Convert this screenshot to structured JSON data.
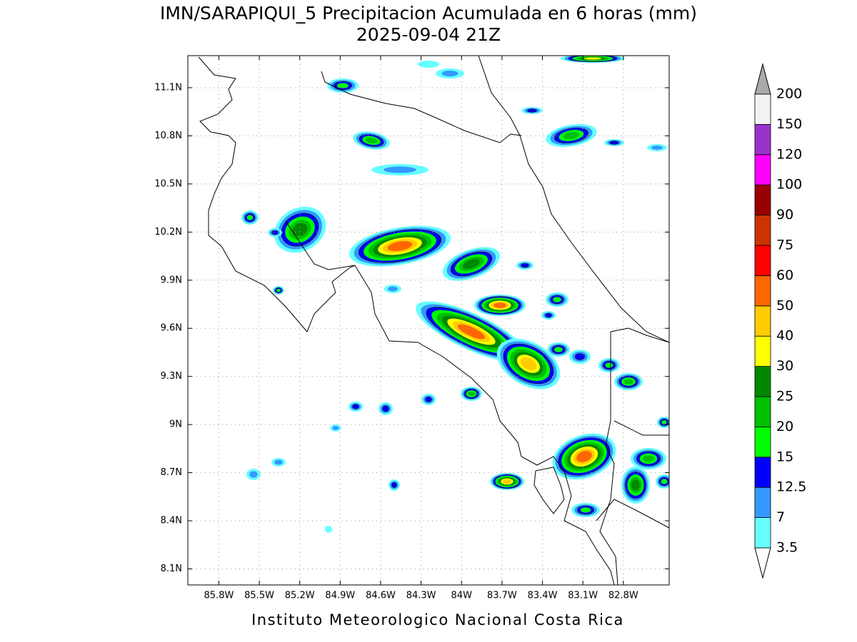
{
  "map": {
    "title": "IMN/SARAPIQUI_5 Precipitacion Acumulada en 6 horas (mm)",
    "subtitle": "2025-09-04 21Z",
    "footer": "Instituto Meteorologico Nacional Costa Rica",
    "xlim": [
      -86.03,
      -82.46
    ],
    "ylim": [
      8.0,
      11.3
    ],
    "xticks": [
      {
        "value": -85.8,
        "label": "85.8W"
      },
      {
        "value": -85.5,
        "label": "85.5W"
      },
      {
        "value": -85.2,
        "label": "85.2W"
      },
      {
        "value": -84.9,
        "label": "84.9W"
      },
      {
        "value": -84.6,
        "label": "84.6W"
      },
      {
        "value": -84.3,
        "label": "84.3W"
      },
      {
        "value": -84.0,
        "label": "84W"
      },
      {
        "value": -83.7,
        "label": "83.7W"
      },
      {
        "value": -83.4,
        "label": "83.4W"
      },
      {
        "value": -83.1,
        "label": "83.1W"
      },
      {
        "value": -82.8,
        "label": "82.8W"
      }
    ],
    "yticks": [
      {
        "value": 11.1,
        "label": "11.1N"
      },
      {
        "value": 10.8,
        "label": "10.8N"
      },
      {
        "value": 10.5,
        "label": "10.5N"
      },
      {
        "value": 10.2,
        "label": "10.2N"
      },
      {
        "value": 9.9,
        "label": "9.9N"
      },
      {
        "value": 9.6,
        "label": "9.6N"
      },
      {
        "value": 9.3,
        "label": "9.3N"
      },
      {
        "value": 9.0,
        "label": "9N"
      },
      {
        "value": 8.7,
        "label": "8.7N"
      },
      {
        "value": 8.4,
        "label": "8.4N"
      },
      {
        "value": 8.1,
        "label": "8.1N"
      }
    ],
    "grid": true,
    "colorbar": {
      "levels": [
        3.5,
        7,
        12.5,
        15,
        20,
        25,
        30,
        40,
        50,
        60,
        75,
        90,
        100,
        120,
        150,
        200
      ],
      "colors": [
        "#66ffff",
        "#3399ff",
        "#0000ff",
        "#00ff00",
        "#00c000",
        "#008800",
        "#ffff00",
        "#ffcc00",
        "#ff6600",
        "#ff0000",
        "#cc3300",
        "#990000",
        "#ff00ff",
        "#9933cc",
        "#f2f2f2"
      ],
      "under_color": "#ffffff",
      "over_color": "#aaaaaa"
    }
  }
}
